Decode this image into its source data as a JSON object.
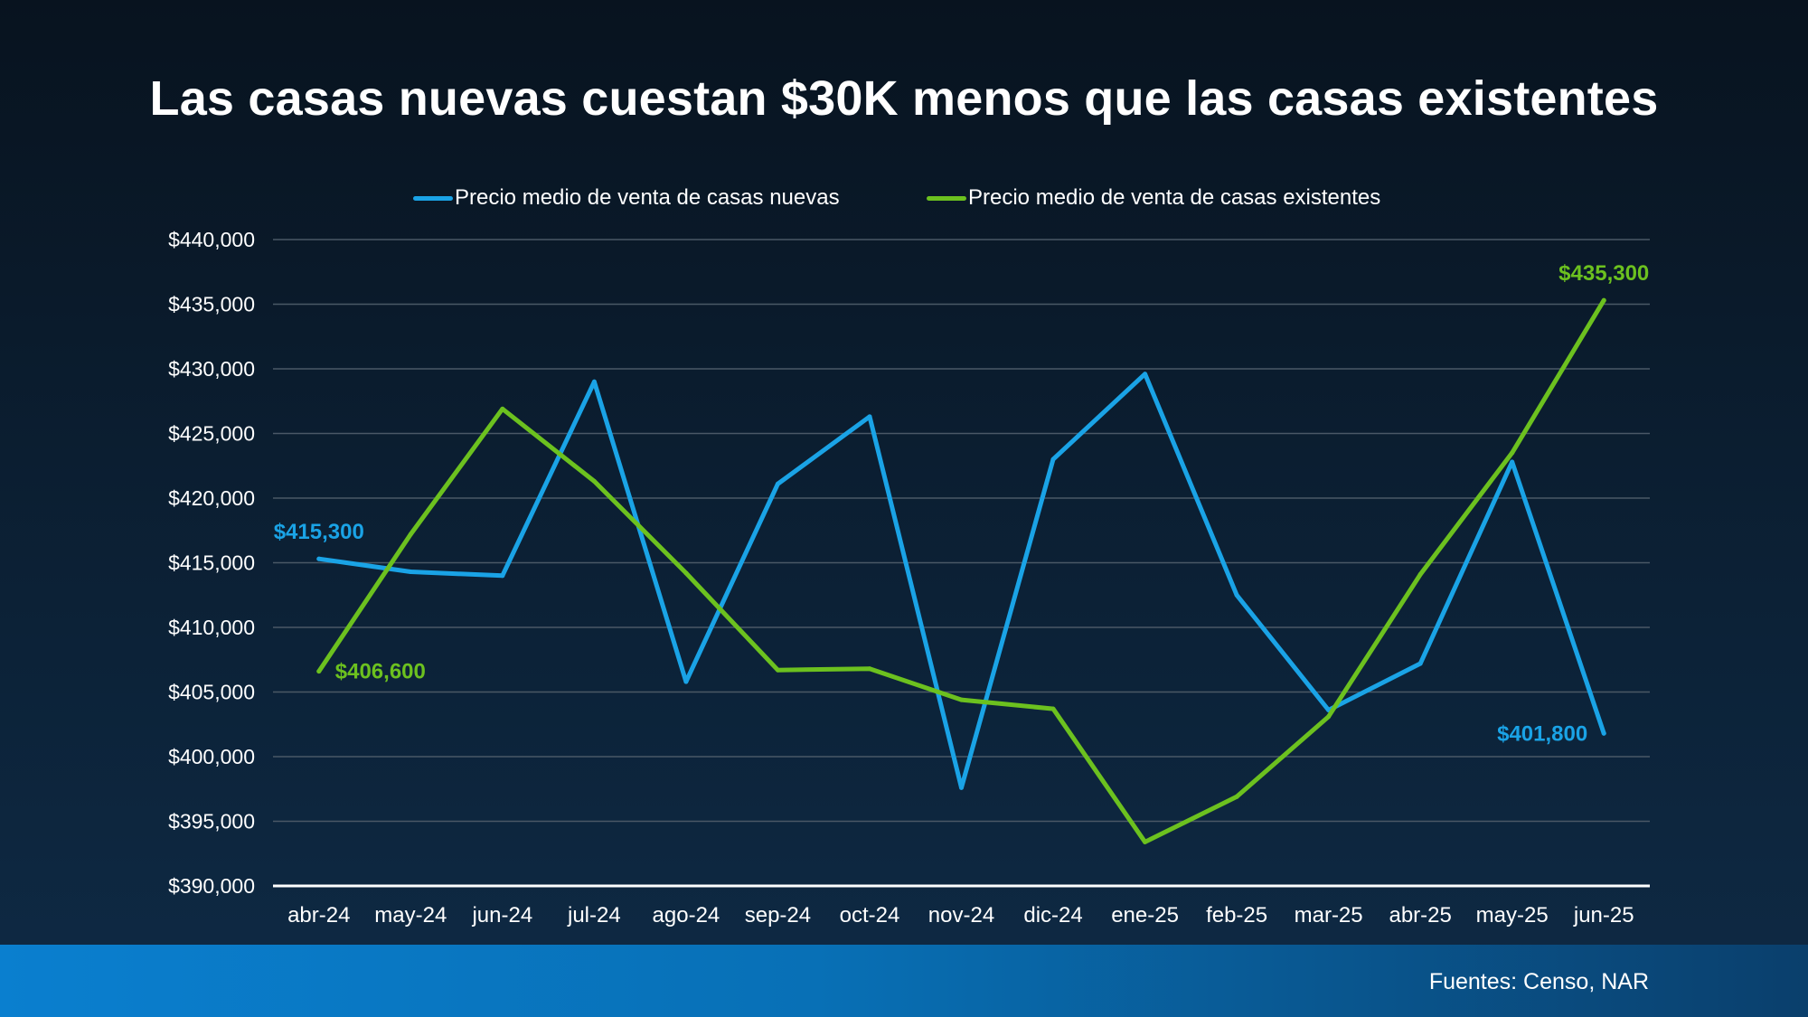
{
  "title": "Las casas nuevas cuestan $30K menos que las casas existentes",
  "source": "Fuentes: Censo, NAR",
  "colors": {
    "new_homes": "#1aa3e6",
    "existing_homes": "#6cc11f",
    "grid": "#4a5866",
    "axis": "#ffffff"
  },
  "chart_data": {
    "type": "line",
    "title": "Las casas nuevas cuestan $30K menos que las casas existentes",
    "xlabel": "",
    "ylabel": "",
    "categories": [
      "abr-24",
      "may-24",
      "jun-24",
      "jul-24",
      "ago-24",
      "sep-24",
      "oct-24",
      "nov-24",
      "dic-24",
      "ene-25",
      "feb-25",
      "mar-25",
      "abr-25",
      "may-25",
      "jun-25"
    ],
    "ylim": [
      390000,
      440000
    ],
    "yticks": [
      390000,
      395000,
      400000,
      405000,
      410000,
      415000,
      420000,
      425000,
      430000,
      435000,
      440000
    ],
    "ytick_labels": [
      "$390,000",
      "$395,000",
      "$400,000",
      "$405,000",
      "$410,000",
      "$415,000",
      "$420,000",
      "$425,000",
      "$430,000",
      "$435,000",
      "$440,000"
    ],
    "grid": true,
    "legend_position": "top-center",
    "series": [
      {
        "name": "Precio medio de venta de casas nuevas",
        "color": "#1aa3e6",
        "values": [
          415300,
          414300,
          414000,
          429000,
          405800,
          421100,
          426300,
          397600,
          423000,
          429600,
          412500,
          403600,
          407200,
          422800,
          401800
        ]
      },
      {
        "name": "Precio medio de venta de casas existentes",
        "color": "#6cc11f",
        "values": [
          406600,
          417200,
          426900,
          421300,
          414200,
          406700,
          406800,
          404400,
          403700,
          393400,
          396900,
          403100,
          414100,
          423500,
          435300
        ]
      }
    ],
    "annotations": [
      {
        "series": 0,
        "index": 0,
        "text": "$415,300",
        "position": "above"
      },
      {
        "series": 1,
        "index": 0,
        "text": "$406,600",
        "position": "right"
      },
      {
        "series": 0,
        "index": 14,
        "text": "$401,800",
        "position": "left"
      },
      {
        "series": 1,
        "index": 14,
        "text": "$435,300",
        "position": "above"
      }
    ]
  }
}
